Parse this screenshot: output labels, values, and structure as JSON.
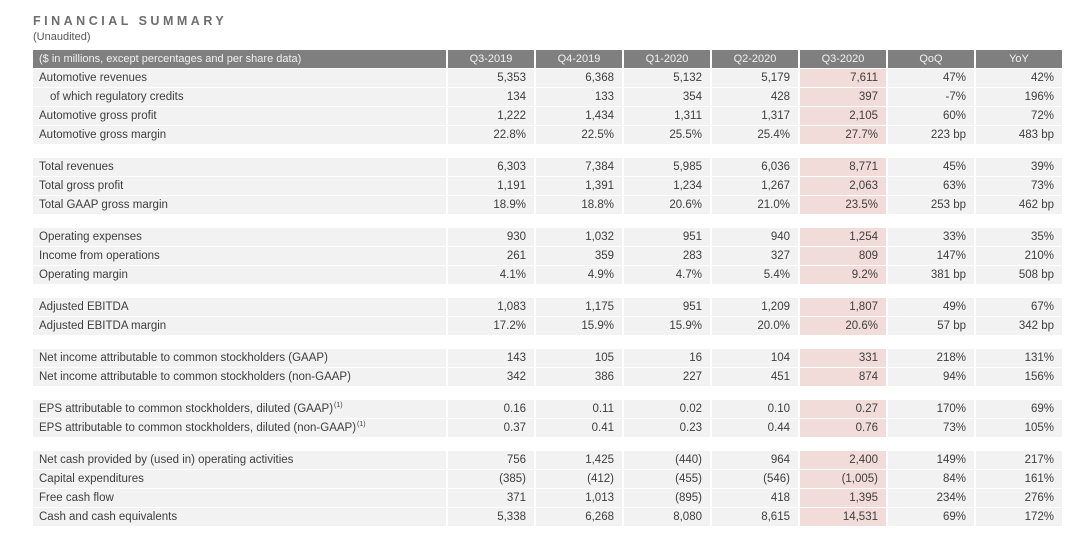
{
  "page": {
    "title": "FINANCIAL SUMMARY",
    "subtitle": "(Unaudited)"
  },
  "colors": {
    "header_bg": "#7f7f7f",
    "header_text": "#f2f2f2",
    "row_bg": "#f2f2f2",
    "highlight_bg": "#f2dcda",
    "text": "#3d3d3d",
    "title_text": "#6e6e6e"
  },
  "table": {
    "label_header": "($ in millions, except percentages and per share data)",
    "columns": [
      "Q3-2019",
      "Q4-2019",
      "Q1-2020",
      "Q2-2020",
      "Q3-2020",
      "QoQ",
      "YoY"
    ],
    "highlight_column": "Q3-2020",
    "groups": [
      {
        "rows": [
          {
            "label": "Automotive revenues",
            "values": [
              "5,353",
              "6,368",
              "5,132",
              "5,179",
              "7,611",
              "47%",
              "42%"
            ]
          },
          {
            "label": "of which regulatory credits",
            "indent": true,
            "values": [
              "134",
              "133",
              "354",
              "428",
              "397",
              "-7%",
              "196%"
            ]
          },
          {
            "label": "Automotive gross profit",
            "values": [
              "1,222",
              "1,434",
              "1,311",
              "1,317",
              "2,105",
              "60%",
              "72%"
            ]
          },
          {
            "label": "Automotive gross margin",
            "values": [
              "22.8%",
              "22.5%",
              "25.5%",
              "25.4%",
              "27.7%",
              "223 bp",
              "483 bp"
            ]
          }
        ]
      },
      {
        "rows": [
          {
            "label": "Total revenues",
            "values": [
              "6,303",
              "7,384",
              "5,985",
              "6,036",
              "8,771",
              "45%",
              "39%"
            ]
          },
          {
            "label": "Total gross profit",
            "values": [
              "1,191",
              "1,391",
              "1,234",
              "1,267",
              "2,063",
              "63%",
              "73%"
            ]
          },
          {
            "label": "Total GAAP gross margin",
            "values": [
              "18.9%",
              "18.8%",
              "20.6%",
              "21.0%",
              "23.5%",
              "253 bp",
              "462 bp"
            ]
          }
        ]
      },
      {
        "rows": [
          {
            "label": "Operating expenses",
            "values": [
              "930",
              "1,032",
              "951",
              "940",
              "1,254",
              "33%",
              "35%"
            ]
          },
          {
            "label": "Income from operations",
            "values": [
              "261",
              "359",
              "283",
              "327",
              "809",
              "147%",
              "210%"
            ]
          },
          {
            "label": "Operating margin",
            "values": [
              "4.1%",
              "4.9%",
              "4.7%",
              "5.4%",
              "9.2%",
              "381 bp",
              "508 bp"
            ]
          }
        ]
      },
      {
        "rows": [
          {
            "label": "Adjusted EBITDA",
            "values": [
              "1,083",
              "1,175",
              "951",
              "1,209",
              "1,807",
              "49%",
              "67%"
            ]
          },
          {
            "label": "Adjusted EBITDA margin",
            "values": [
              "17.2%",
              "15.9%",
              "15.9%",
              "20.0%",
              "20.6%",
              "57 bp",
              "342 bp"
            ]
          }
        ]
      },
      {
        "rows": [
          {
            "label": "Net income attributable to common stockholders (GAAP)",
            "values": [
              "143",
              "105",
              "16",
              "104",
              "331",
              "218%",
              "131%"
            ]
          },
          {
            "label": "Net income attributable to common stockholders (non-GAAP)",
            "values": [
              "342",
              "386",
              "227",
              "451",
              "874",
              "94%",
              "156%"
            ]
          }
        ]
      },
      {
        "rows": [
          {
            "label": "EPS attributable to common stockholders, diluted (GAAP)",
            "sup": "(1)",
            "values": [
              "0.16",
              "0.11",
              "0.02",
              "0.10",
              "0.27",
              "170%",
              "69%"
            ]
          },
          {
            "label": "EPS attributable to common stockholders, diluted (non-GAAP)",
            "sup": "(1)",
            "values": [
              "0.37",
              "0.41",
              "0.23",
              "0.44",
              "0.76",
              "73%",
              "105%"
            ]
          }
        ]
      },
      {
        "rows": [
          {
            "label": "Net cash provided by (used in) operating activities",
            "values": [
              "756",
              "1,425",
              "(440)",
              "964",
              "2,400",
              "149%",
              "217%"
            ]
          },
          {
            "label": "Capital expenditures",
            "values": [
              "(385)",
              "(412)",
              "(455)",
              "(546)",
              "(1,005)",
              "84%",
              "161%"
            ]
          },
          {
            "label": "Free cash flow",
            "values": [
              "371",
              "1,013",
              "(895)",
              "418",
              "1,395",
              "234%",
              "276%"
            ]
          },
          {
            "label": "Cash and cash equivalents",
            "values": [
              "5,338",
              "6,268",
              "8,080",
              "8,615",
              "14,531",
              "69%",
              "172%"
            ]
          }
        ]
      }
    ]
  }
}
